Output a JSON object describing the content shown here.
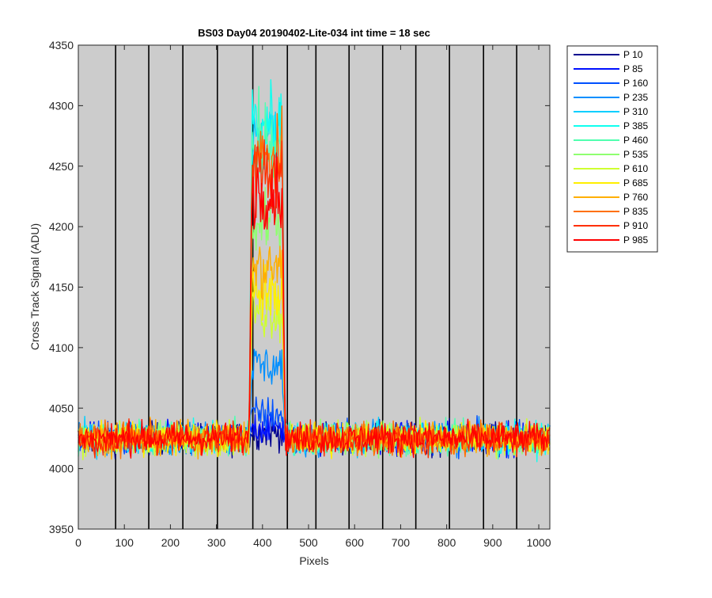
{
  "chart_data": {
    "type": "line",
    "title": "BS03 Day04 20190402-Lite-034 int time = 18 sec",
    "xlabel": "Pixels",
    "ylabel": "Cross Track Signal (ADU)",
    "xlim": [
      0,
      1024
    ],
    "ylim": [
      3950,
      4350
    ],
    "x_ticks": [
      0,
      100,
      200,
      300,
      400,
      500,
      600,
      700,
      800,
      900,
      1000
    ],
    "y_ticks": [
      3950,
      4000,
      4050,
      4100,
      4150,
      4200,
      4250,
      4300,
      4350
    ],
    "grid": "vertical lines only",
    "plot_background": "#cccccc",
    "legend_position": "outside-top-right",
    "vertical_lines_x": [
      81,
      153,
      227,
      302,
      379,
      454,
      516,
      588,
      661,
      733,
      806,
      880,
      952
    ],
    "baseline_level": 4025,
    "peak_range_x": [
      377,
      443
    ],
    "series": [
      {
        "name": "P 10",
        "color": "#00008f",
        "peak_level": 4030
      },
      {
        "name": "P 85",
        "color": "#0010ff",
        "peak_level": 4035
      },
      {
        "name": "P 160",
        "color": "#0050ff",
        "peak_level": 4045
      },
      {
        "name": "P 235",
        "color": "#008fff",
        "peak_level": 4085
      },
      {
        "name": "P 310",
        "color": "#00cfff",
        "peak_level": 4275
      },
      {
        "name": "P 385",
        "color": "#10ffef",
        "peak_level": 4285
      },
      {
        "name": "P 460",
        "color": "#50ffaf",
        "peak_level": 4265
      },
      {
        "name": "P 535",
        "color": "#8fff70",
        "peak_level": 4205
      },
      {
        "name": "P 610",
        "color": "#cfff30",
        "peak_level": 4130
      },
      {
        "name": "P 685",
        "color": "#ffef00",
        "peak_level": 4145
      },
      {
        "name": "P 760",
        "color": "#ffaf00",
        "peak_level": 4165
      },
      {
        "name": "P 835",
        "color": "#ff7000",
        "peak_level": 4255
      },
      {
        "name": "P 910",
        "color": "#ff3000",
        "peak_level": 4245
      },
      {
        "name": "P 985",
        "color": "#ff0000",
        "peak_level": 4230
      }
    ]
  }
}
